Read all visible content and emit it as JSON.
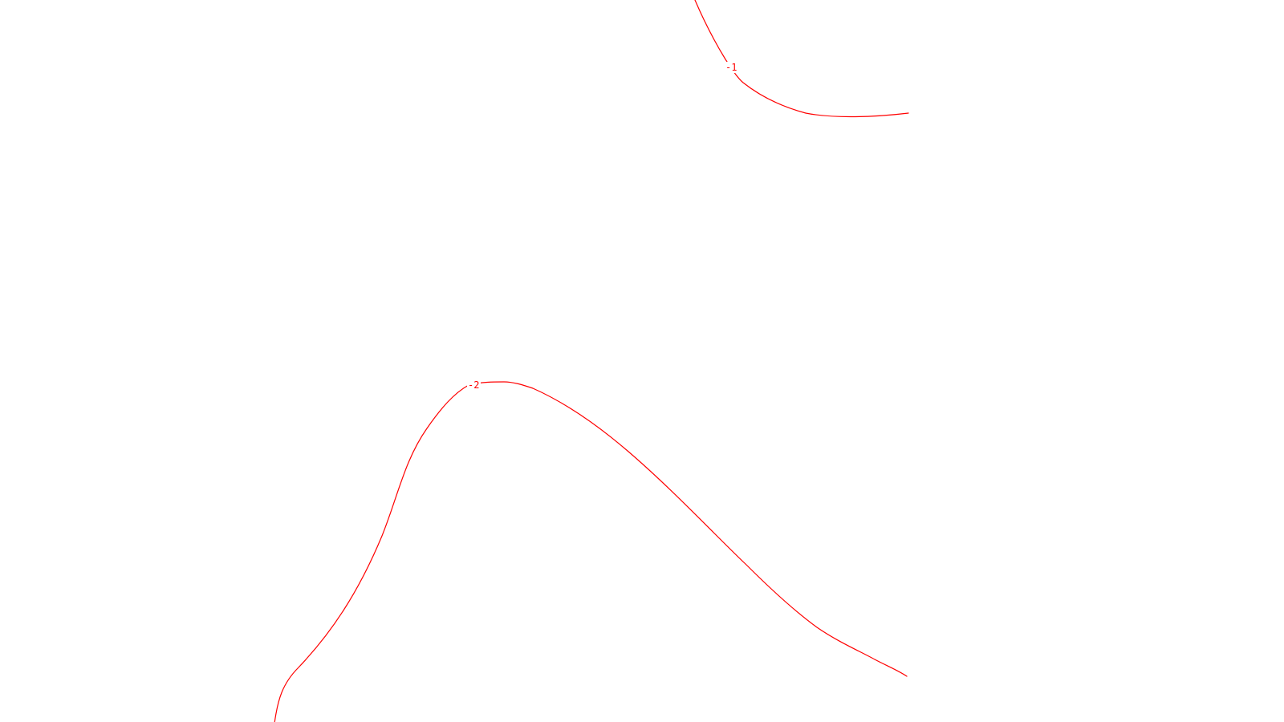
{
  "chart_data": {
    "type": "contour",
    "title": "",
    "xlabel": "",
    "ylabel": "",
    "axes_visible": false,
    "grid": false,
    "line_color": "#ff0000",
    "contours": [
      {
        "level": -1,
        "label": "-1"
      },
      {
        "level": -2,
        "label": "-2"
      }
    ]
  }
}
